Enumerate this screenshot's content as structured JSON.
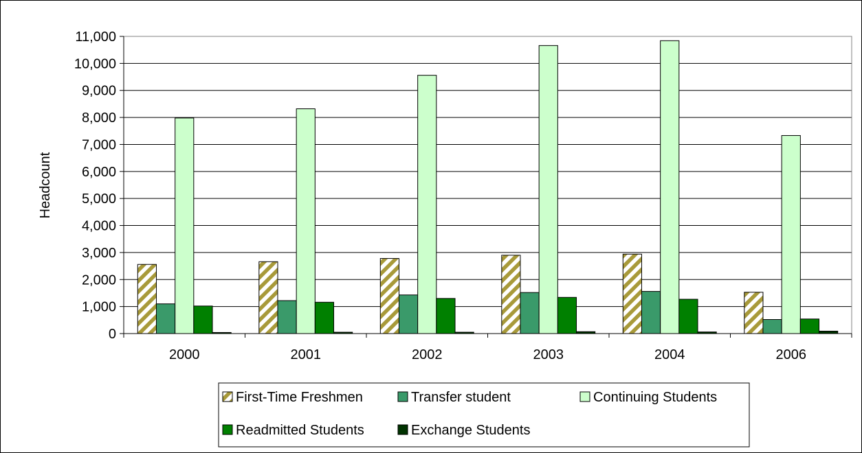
{
  "chart_data": {
    "type": "bar",
    "title": "",
    "xlabel": "",
    "ylabel": "Headcount",
    "ylim": [
      0,
      11000
    ],
    "yticks": [
      0,
      1000,
      2000,
      3000,
      4000,
      5000,
      6000,
      7000,
      8000,
      9000,
      10000,
      11000
    ],
    "ytick_labels": [
      "0",
      "1,000",
      "2,000",
      "3,000",
      "4,000",
      "5,000",
      "6,000",
      "7,000",
      "8,000",
      "9,000",
      "10,000",
      "11,000"
    ],
    "categories": [
      "2000",
      "2001",
      "2002",
      "2003",
      "2004",
      "2006"
    ],
    "grid": "horizontal",
    "legend_position": "bottom",
    "series": [
      {
        "name": "First-Time Freshmen",
        "color": "#a89a3a",
        "pattern": "diagonal-hatch",
        "values": [
          2560,
          2660,
          2780,
          2900,
          2940,
          1530
        ]
      },
      {
        "name": "Transfer student",
        "color": "#3a9a6a",
        "pattern": "solid",
        "values": [
          1100,
          1220,
          1430,
          1520,
          1560,
          520
        ]
      },
      {
        "name": "Continuing Students",
        "color": "#ccffcc",
        "pattern": "solid",
        "values": [
          7980,
          8320,
          9560,
          10660,
          10840,
          7330
        ]
      },
      {
        "name": "Readmitted Students",
        "color": "#008000",
        "pattern": "solid",
        "values": [
          1020,
          1160,
          1300,
          1340,
          1270,
          540
        ]
      },
      {
        "name": "Exchange Students",
        "color": "#003300",
        "pattern": "solid",
        "values": [
          40,
          50,
          50,
          70,
          60,
          90
        ]
      }
    ]
  }
}
